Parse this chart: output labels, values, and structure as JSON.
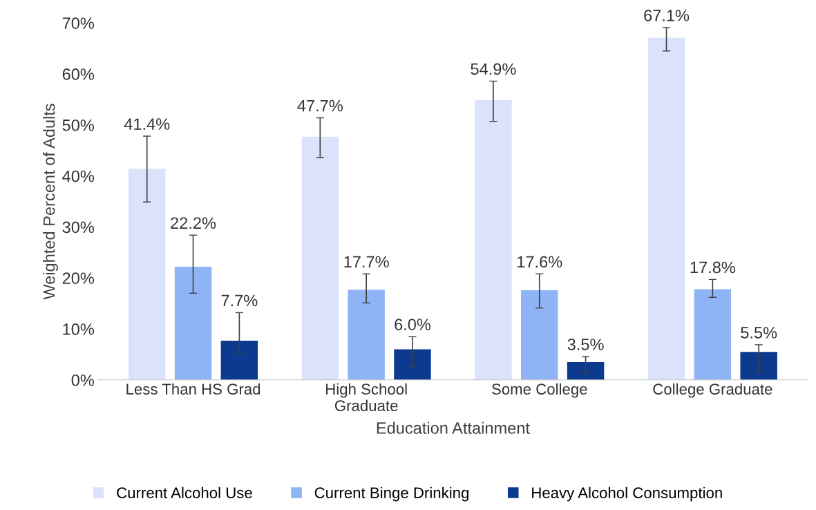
{
  "chart_data": {
    "type": "bar",
    "xlabel": "Education Attainment",
    "ylabel": "Weighted Percent of Adults",
    "categories": [
      "Less Than HS Grad",
      "High School\nGraduate",
      "Some College",
      "College Graduate"
    ],
    "series": [
      {
        "name": "Current Alcohol Use",
        "color": "#dae3fb",
        "values": [
          41.4,
          47.7,
          54.9,
          67.1
        ],
        "errors": [
          [
            34.9,
            47.8
          ],
          [
            43.6,
            51.4
          ],
          [
            50.7,
            58.6
          ],
          [
            64.5,
            69.1
          ]
        ],
        "value_labels": [
          "41.4%",
          "47.7%",
          "54.9%",
          "67.1%"
        ]
      },
      {
        "name": "Current Binge Drinking",
        "color": "#8fb4f5",
        "values": [
          22.2,
          17.7,
          17.6,
          17.8
        ],
        "errors": [
          [
            17.0,
            28.4
          ],
          [
            15.1,
            20.8
          ],
          [
            14.1,
            20.8
          ],
          [
            16.2,
            19.7
          ]
        ],
        "value_labels": [
          "22.2%",
          "17.7%",
          "17.6%",
          "17.8%"
        ]
      },
      {
        "name": "Heavy Alcohol Consumption",
        "color": "#0b3a8f",
        "values": [
          7.7,
          6.0,
          3.5,
          5.5
        ],
        "errors": [
          [
            5.4,
            13.2
          ],
          [
            2.6,
            8.5
          ],
          [
            1.6,
            4.6
          ],
          [
            1.5,
            6.9
          ]
        ],
        "value_labels": [
          "7.7%",
          "6.0%",
          "3.5%",
          "5.5%"
        ]
      }
    ],
    "ylim": [
      0,
      70
    ],
    "yticks": [
      {
        "value": 0,
        "label": "0%"
      },
      {
        "value": 10,
        "label": "10%"
      },
      {
        "value": 20,
        "label": "20%"
      },
      {
        "value": 30,
        "label": "30%"
      },
      {
        "value": 40,
        "label": "40%"
      },
      {
        "value": 50,
        "label": "50%"
      },
      {
        "value": 60,
        "label": "60%"
      },
      {
        "value": 70,
        "label": "70%"
      }
    ],
    "legend": "bottom",
    "grid": false
  }
}
